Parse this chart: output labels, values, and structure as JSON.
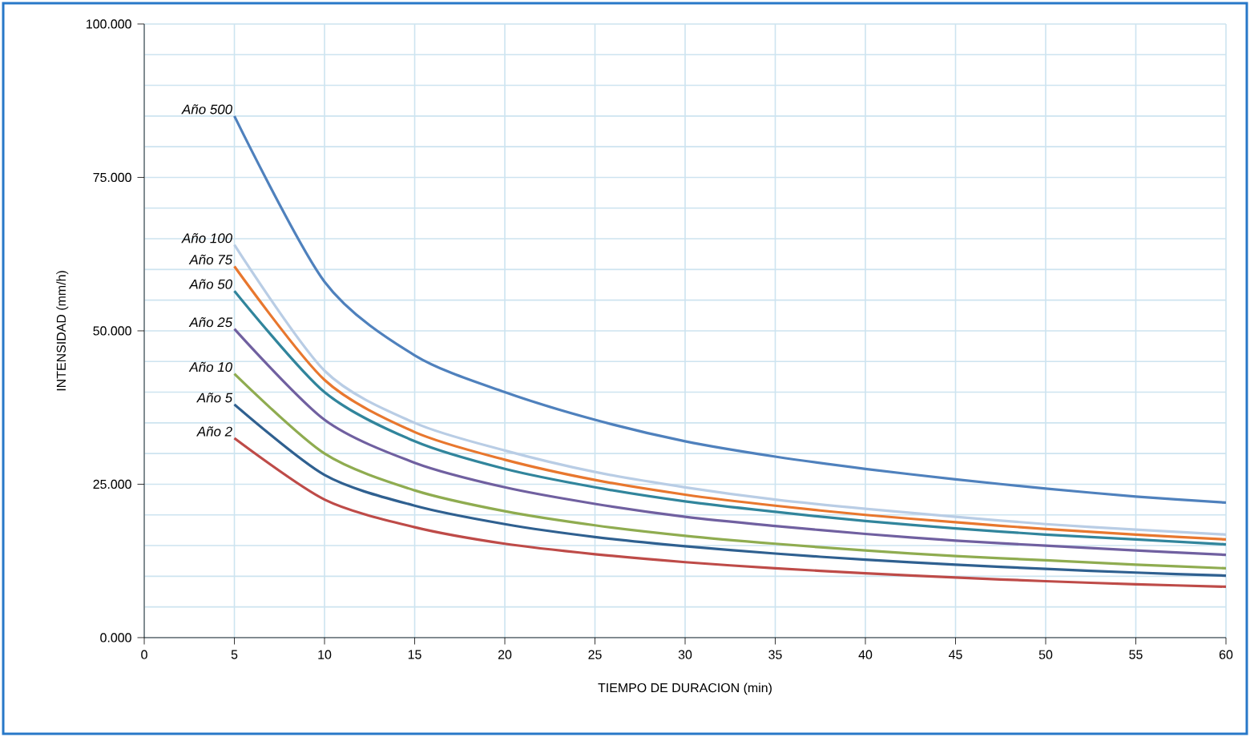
{
  "chart_data": {
    "type": "line",
    "xlabel": "TIEMPO DE DURACION (min)",
    "ylabel": "INTENSIDAD (mm/h)",
    "x": [
      5,
      10,
      15,
      20,
      25,
      30,
      35,
      40,
      45,
      50,
      55,
      60
    ],
    "xlim": [
      0,
      60
    ],
    "xticks": [
      0,
      5,
      10,
      15,
      20,
      25,
      30,
      35,
      40,
      45,
      50,
      55,
      60
    ],
    "ylim": [
      0,
      100
    ],
    "yticks": [
      {
        "value": 0,
        "label": "0.000"
      },
      {
        "value": 25,
        "label": "25.000"
      },
      {
        "value": 50,
        "label": "50.000"
      },
      {
        "value": 75,
        "label": "75.000"
      },
      {
        "value": 100,
        "label": "100.000"
      }
    ],
    "grid": true,
    "legend": false,
    "marker": "none",
    "line_style": "solid",
    "series": [
      {
        "name": "Año 500",
        "color": "#4f81bd",
        "values": [
          85,
          58,
          46,
          40,
          35.5,
          32,
          29.5,
          27.5,
          25.8,
          24.3,
          23,
          22
        ]
      },
      {
        "name": "Año 100",
        "color": "#b9cde5",
        "values": [
          64,
          43.5,
          35,
          30.5,
          27,
          24.5,
          22.5,
          21,
          19.7,
          18.5,
          17.6,
          16.8
        ]
      },
      {
        "name": "Año 75",
        "color": "#e8772e",
        "values": [
          60.5,
          42,
          33.5,
          29,
          25.7,
          23.3,
          21.5,
          20,
          18.8,
          17.7,
          16.8,
          16
        ]
      },
      {
        "name": "Año 50",
        "color": "#31859c",
        "values": [
          56.5,
          40,
          32,
          27.5,
          24.5,
          22.2,
          20.5,
          19,
          17.8,
          16.8,
          16,
          15.2
        ]
      },
      {
        "name": "Año 25",
        "color": "#7060a0",
        "values": [
          50.3,
          35.5,
          28.5,
          24.5,
          21.8,
          19.7,
          18.2,
          16.9,
          15.8,
          15,
          14.2,
          13.5
        ]
      },
      {
        "name": "Año 10",
        "color": "#8fac50",
        "values": [
          43,
          30,
          24,
          20.6,
          18.3,
          16.6,
          15.3,
          14.2,
          13.3,
          12.6,
          11.9,
          11.3
        ]
      },
      {
        "name": "Año 5",
        "color": "#2f6090",
        "values": [
          38,
          26.5,
          21.5,
          18.5,
          16.4,
          14.9,
          13.7,
          12.7,
          11.9,
          11.2,
          10.6,
          10.1
        ]
      },
      {
        "name": "Año 2",
        "color": "#be4b48",
        "values": [
          32.5,
          22.5,
          18,
          15.3,
          13.6,
          12.3,
          11.3,
          10.5,
          9.8,
          9.2,
          8.7,
          8.3
        ]
      }
    ]
  }
}
